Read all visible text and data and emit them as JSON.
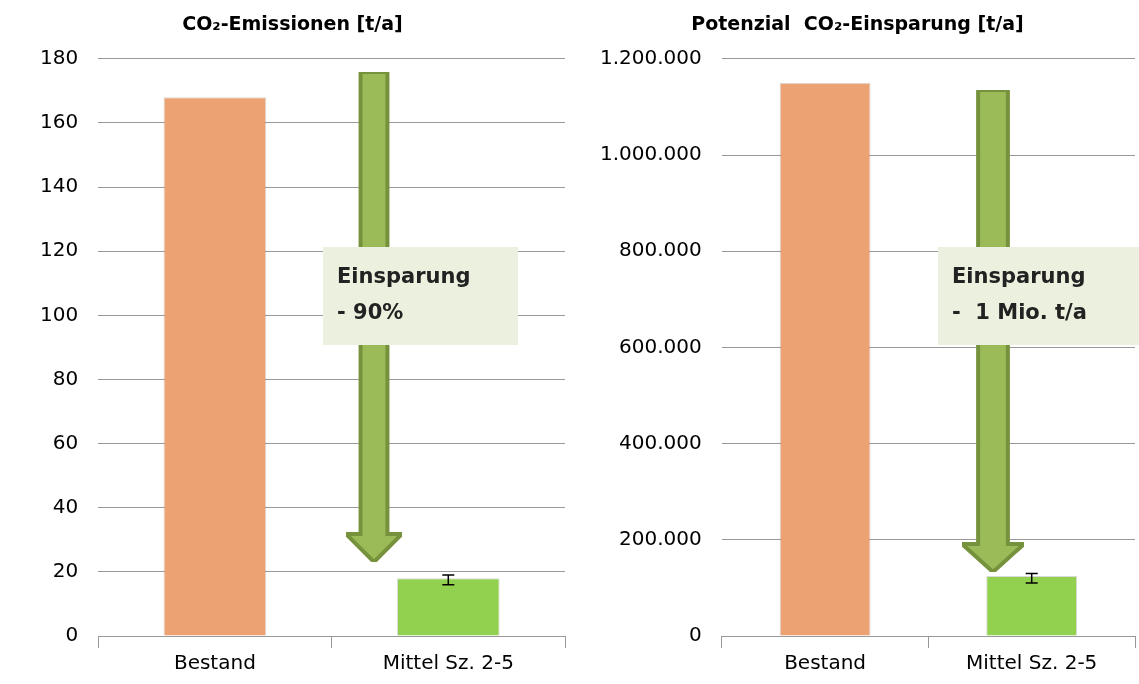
{
  "chart_data": [
    {
      "type": "bar",
      "title": "CO₂-Emissionen [t/a]",
      "categories": [
        "Bestand",
        "Mittel Sz. 2-5"
      ],
      "values": [
        168,
        18
      ],
      "colors": [
        "#eda273",
        "#92d050"
      ],
      "errors": [
        null,
        [
          16,
          19
        ]
      ],
      "ylim": [
        0,
        180
      ],
      "yticks": [
        0,
        20,
        40,
        60,
        80,
        100,
        120,
        140,
        160,
        180
      ],
      "grid": "y",
      "legend": false,
      "annotations": [
        "Einsparung\n- 90%"
      ]
    },
    {
      "type": "bar",
      "title": "Potenzial  CO₂-Einsparung [t/a]",
      "categories": [
        "Bestand",
        "Mittel Sz. 2-5"
      ],
      "values": [
        1150000,
        125000
      ],
      "colors": [
        "#eda273",
        "#92d050"
      ],
      "errors": [
        null,
        [
          110000,
          130000
        ]
      ],
      "ylim": [
        0,
        1200000
      ],
      "yticks": [
        {
          "value": 0,
          "label": "0"
        },
        {
          "value": 200000,
          "label": "200.000"
        },
        {
          "value": 400000,
          "label": "400.000"
        },
        {
          "value": 600000,
          "label": "600.000"
        },
        {
          "value": 800000,
          "label": "800.000"
        },
        {
          "value": 1000000,
          "label": "1.000.000"
        },
        {
          "value": 1200000,
          "label": "1.200.000"
        }
      ],
      "grid": "y",
      "legend": false,
      "annotations": [
        "Einsparung\n-  1 Mio. t/a"
      ]
    }
  ]
}
